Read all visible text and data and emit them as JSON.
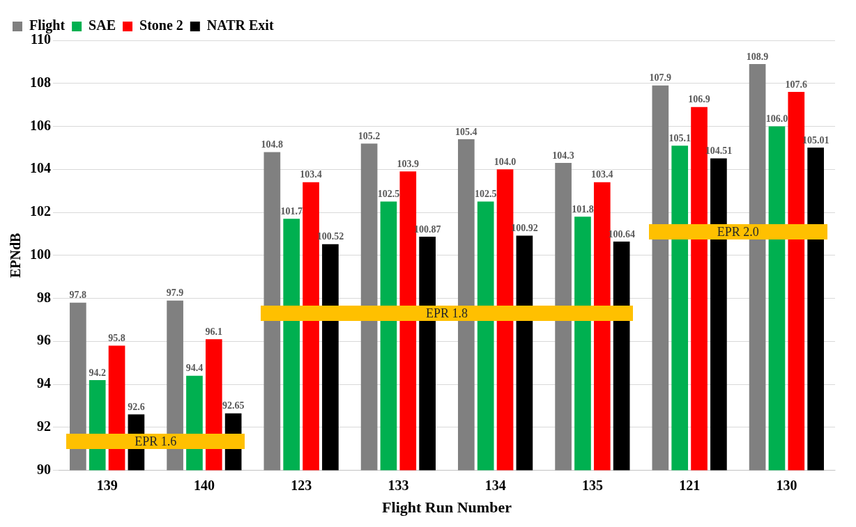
{
  "chart_data": {
    "type": "bar",
    "xlabel": "Flight Run Number",
    "ylabel": "EPNdB",
    "categories": [
      "139",
      "140",
      "123",
      "133",
      "134",
      "135",
      "121",
      "130"
    ],
    "series": [
      {
        "name": "Flight",
        "color": "#808080",
        "values": [
          97.8,
          97.9,
          104.8,
          105.2,
          105.4,
          104.3,
          107.9,
          108.9
        ],
        "value_labels": [
          "97.8",
          "97.9",
          "104.8",
          "105.2",
          "105.4",
          "104.3",
          "107.9",
          "108.9"
        ]
      },
      {
        "name": "SAE",
        "color": "#00b050",
        "values": [
          94.2,
          94.4,
          101.7,
          102.5,
          102.5,
          101.8,
          105.1,
          106.0
        ],
        "value_labels": [
          "94.2",
          "94.4",
          "101.7",
          "102.5",
          "102.5",
          "101.8",
          "105.1",
          "106.0"
        ]
      },
      {
        "name": "Stone 2",
        "color": "#ff0000",
        "values": [
          95.8,
          96.1,
          103.4,
          103.9,
          104.0,
          103.4,
          106.9,
          107.6
        ],
        "value_labels": [
          "95.8",
          "96.1",
          "103.4",
          "103.9",
          "104.0",
          "103.4",
          "106.9",
          "107.6"
        ]
      },
      {
        "name": "NATR Exit",
        "color": "#000000",
        "values": [
          92.6,
          92.65,
          100.52,
          100.87,
          100.92,
          100.64,
          104.51,
          105.01
        ],
        "value_labels": [
          "92.6",
          "92.65",
          "100.52",
          "100.87",
          "100.92",
          "100.64",
          "104.51",
          "105.01"
        ]
      }
    ],
    "ylim": [
      90,
      110
    ],
    "yticks": [
      90,
      92,
      94,
      96,
      98,
      100,
      102,
      104,
      106,
      108,
      110
    ],
    "grid": "y",
    "legend": "top left",
    "annotations": [
      "EPR 1.6",
      "EPR 1.8",
      "EPR 2.0"
    ]
  }
}
